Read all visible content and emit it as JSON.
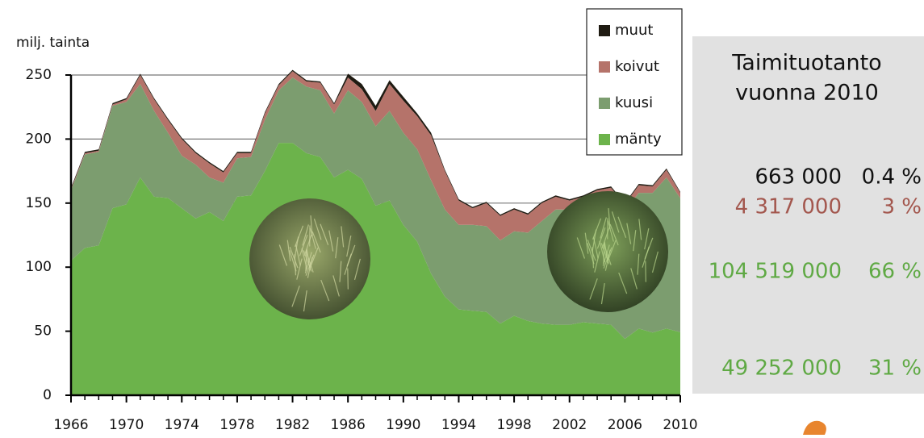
{
  "chart_data": {
    "type": "stacked-area",
    "y_label": "milj. tainta",
    "x": [
      1966,
      1967,
      1968,
      1969,
      1970,
      1971,
      1972,
      1973,
      1974,
      1975,
      1976,
      1977,
      1978,
      1979,
      1980,
      1981,
      1982,
      1983,
      1984,
      1985,
      1986,
      1987,
      1988,
      1989,
      1990,
      1991,
      1992,
      1993,
      1994,
      1995,
      1996,
      1997,
      1998,
      1999,
      2000,
      2001,
      2002,
      2003,
      2004,
      2005,
      2006,
      2007,
      2008,
      2009,
      2010
    ],
    "xlim": [
      1966,
      2010
    ],
    "xticks": [
      1966,
      1970,
      1974,
      1978,
      1982,
      1986,
      1990,
      1994,
      1998,
      2002,
      2006,
      2010
    ],
    "ylim": [
      0,
      250
    ],
    "yticks": [
      0,
      50,
      100,
      150,
      200,
      250
    ],
    "grid": true,
    "legend": "upper right",
    "series": [
      {
        "name": "mänty",
        "color": "#6cb34b",
        "values": [
          105,
          115,
          117,
          146,
          149,
          170,
          155,
          154,
          146,
          138,
          143,
          136,
          155,
          156,
          175,
          197,
          197,
          189,
          186,
          170,
          176,
          169,
          148,
          152,
          133,
          120,
          95,
          77,
          67,
          66,
          65,
          56,
          62,
          58,
          56,
          55,
          55,
          57,
          56,
          55,
          44,
          52,
          49,
          52,
          49.252
        ]
      },
      {
        "name": "kuusi",
        "color": "#7c9d6f",
        "values": [
          55,
          73,
          73,
          80,
          80,
          73,
          67,
          51,
          41,
          42,
          27,
          30,
          30,
          30,
          40,
          41,
          51,
          52,
          52,
          50,
          62,
          60,
          62,
          70,
          72,
          72,
          73,
          68,
          66,
          67,
          67,
          65,
          66,
          69,
          80,
          90,
          90,
          91,
          99,
          102,
          100,
          106,
          109,
          118,
          104.519
        ]
      },
      {
        "name": "koivut",
        "color": "#b5736a",
        "values": [
          1,
          1,
          1,
          1,
          2,
          7,
          9,
          10,
          13,
          9,
          11,
          8,
          4,
          3,
          5,
          4,
          5,
          4,
          6,
          7,
          10,
          10,
          12,
          21,
          25,
          26,
          35,
          30,
          19,
          13,
          18,
          19,
          17,
          14,
          14,
          10,
          7,
          7,
          5,
          5,
          5,
          6,
          5,
          6,
          4.317
        ]
      },
      {
        "name": "muut",
        "color": "#1f1b12",
        "values": [
          1,
          1,
          1,
          1,
          1,
          1,
          1,
          1,
          1,
          1,
          1,
          1,
          1,
          1,
          1,
          1,
          1,
          1,
          1,
          1,
          3,
          4,
          4,
          3,
          3,
          2,
          2,
          1,
          1,
          1,
          1,
          1,
          1,
          1,
          1,
          1,
          1,
          1,
          1,
          1,
          1,
          1,
          1,
          1,
          0.663
        ]
      }
    ]
  },
  "panel": {
    "title": [
      "Taimituotanto",
      "vuonna 2010"
    ],
    "rows": [
      [
        "663 000",
        "0.4 %"
      ],
      [
        "4 317 000",
        "3 %"
      ],
      [
        "104 519 000",
        "66 %"
      ],
      [
        "49 252 000",
        "31 %"
      ]
    ]
  }
}
